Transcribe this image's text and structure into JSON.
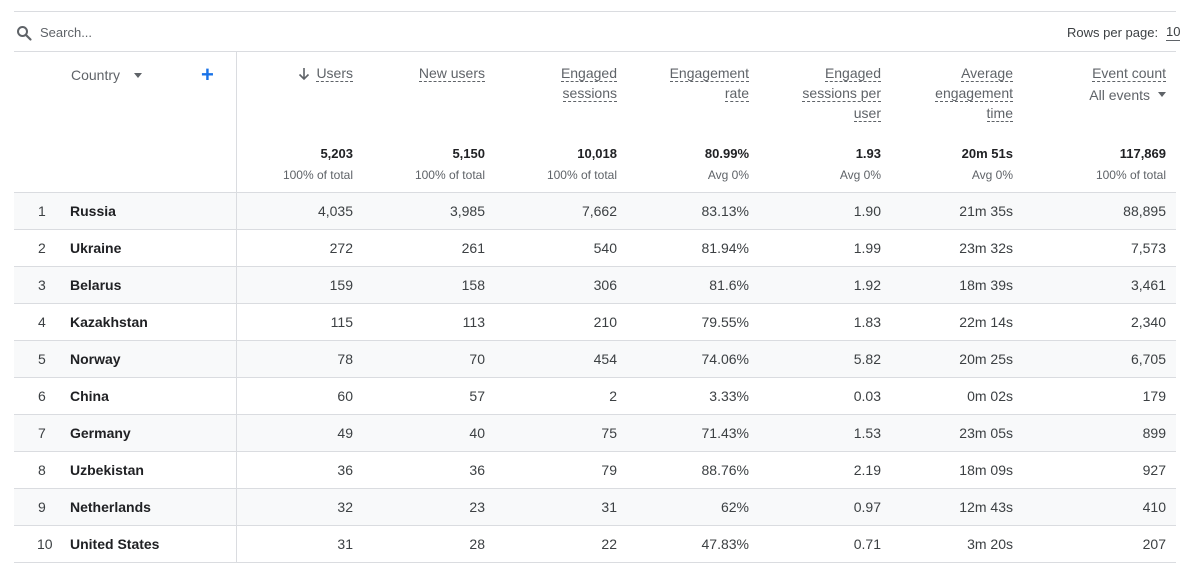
{
  "search": {
    "placeholder": "Search..."
  },
  "pagination": {
    "rows_per_page_label": "Rows per page:",
    "rows_per_page_value": "10"
  },
  "table": {
    "dimension_header": "Country",
    "columns": [
      {
        "label_lines": [
          "Users"
        ],
        "sorted": true
      },
      {
        "label_lines": [
          "New users"
        ]
      },
      {
        "label_lines": [
          "Engaged",
          "sessions"
        ]
      },
      {
        "label_lines": [
          "Engagement",
          "rate"
        ]
      },
      {
        "label_lines": [
          "Engaged",
          "sessions per",
          "user"
        ]
      },
      {
        "label_lines": [
          "Average",
          "engagement",
          "time"
        ]
      },
      {
        "label_lines": [
          "Event count"
        ],
        "sub_dropdown": "All events"
      }
    ],
    "totals": [
      {
        "value": "5,203",
        "sub": "100% of total"
      },
      {
        "value": "5,150",
        "sub": "100% of total"
      },
      {
        "value": "10,018",
        "sub": "100% of total"
      },
      {
        "value": "80.99%",
        "sub": "Avg 0%"
      },
      {
        "value": "1.93",
        "sub": "Avg 0%"
      },
      {
        "value": "20m 51s",
        "sub": "Avg 0%"
      },
      {
        "value": "117,869",
        "sub": "100% of total"
      }
    ],
    "rows": [
      {
        "n": "1",
        "country": "Russia",
        "cells": [
          "4,035",
          "3,985",
          "7,662",
          "83.13%",
          "1.90",
          "21m 35s",
          "88,895"
        ]
      },
      {
        "n": "2",
        "country": "Ukraine",
        "cells": [
          "272",
          "261",
          "540",
          "81.94%",
          "1.99",
          "23m 32s",
          "7,573"
        ]
      },
      {
        "n": "3",
        "country": "Belarus",
        "cells": [
          "159",
          "158",
          "306",
          "81.6%",
          "1.92",
          "18m 39s",
          "3,461"
        ]
      },
      {
        "n": "4",
        "country": "Kazakhstan",
        "cells": [
          "115",
          "113",
          "210",
          "79.55%",
          "1.83",
          "22m 14s",
          "2,340"
        ]
      },
      {
        "n": "5",
        "country": "Norway",
        "cells": [
          "78",
          "70",
          "454",
          "74.06%",
          "5.82",
          "20m 25s",
          "6,705"
        ]
      },
      {
        "n": "6",
        "country": "China",
        "cells": [
          "60",
          "57",
          "2",
          "3.33%",
          "0.03",
          "0m 02s",
          "179"
        ]
      },
      {
        "n": "7",
        "country": "Germany",
        "cells": [
          "49",
          "40",
          "75",
          "71.43%",
          "1.53",
          "23m 05s",
          "899"
        ]
      },
      {
        "n": "8",
        "country": "Uzbekistan",
        "cells": [
          "36",
          "36",
          "79",
          "88.76%",
          "2.19",
          "18m 09s",
          "927"
        ]
      },
      {
        "n": "9",
        "country": "Netherlands",
        "cells": [
          "32",
          "23",
          "31",
          "62%",
          "0.97",
          "12m 43s",
          "410"
        ]
      },
      {
        "n": "10",
        "country": "United States",
        "cells": [
          "31",
          "28",
          "22",
          "47.83%",
          "0.71",
          "3m 20s",
          "207"
        ]
      }
    ]
  }
}
